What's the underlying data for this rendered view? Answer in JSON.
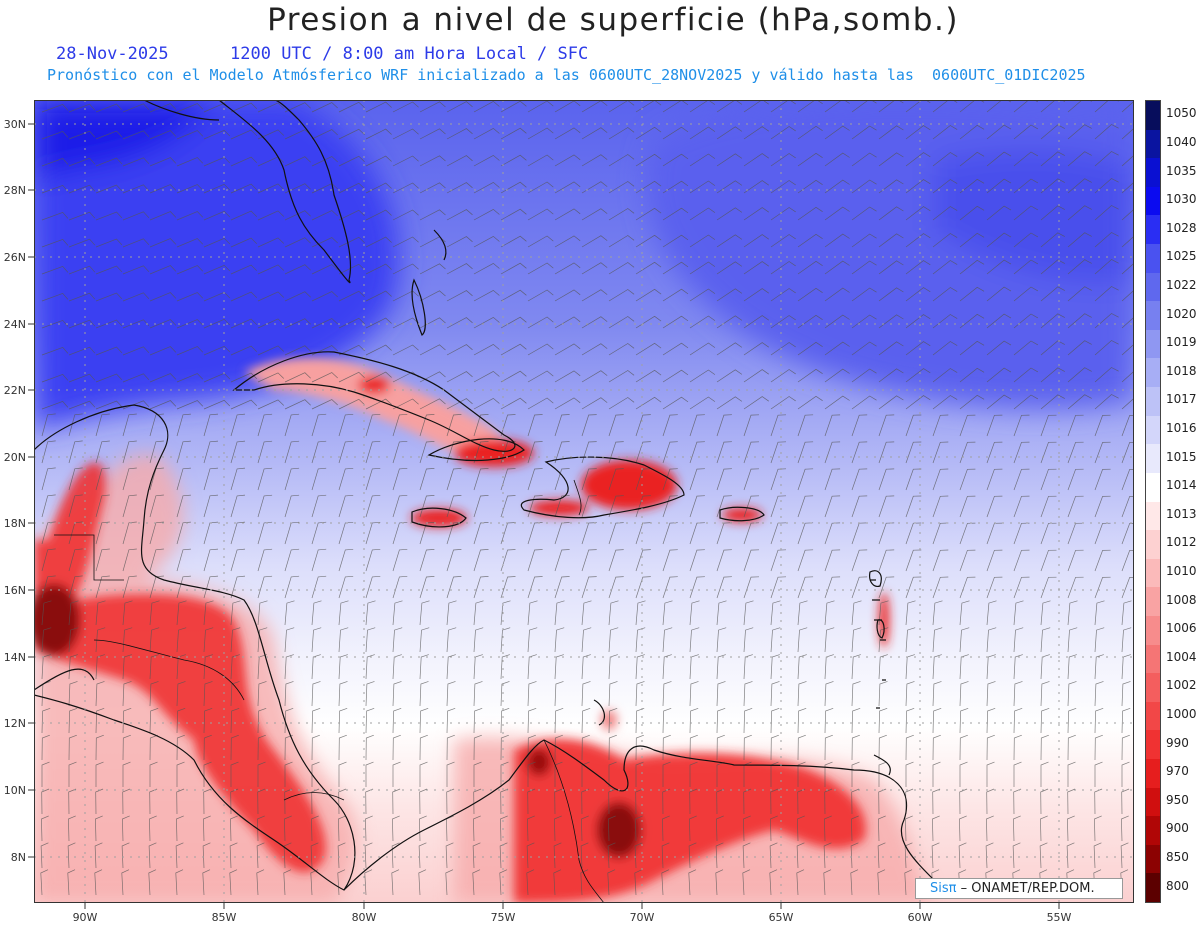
{
  "header": {
    "title": "Presion a nivel de superficie (hPa,somb.)",
    "date": "28-Nov-2025",
    "time": "1200 UTC / 8:00 am Hora Local / SFC",
    "forecast": "Pronóstico con el Modelo Atmósferico WRF inicializado a las 0600UTC_28NOV2025 y válido hasta las  0600UTC_01DIC2025"
  },
  "axes": {
    "lat": [
      "30N",
      "28N",
      "26N",
      "24N",
      "22N",
      "20N",
      "18N",
      "16N",
      "14N",
      "12N",
      "10N",
      "8N"
    ],
    "lon": [
      "90W",
      "85W",
      "80W",
      "75W",
      "70W",
      "65W",
      "60W",
      "55W"
    ]
  },
  "colorbar": {
    "labels": [
      "1050",
      "1040",
      "1035",
      "1030",
      "1028",
      "1025",
      "1022",
      "1020",
      "1019",
      "1018",
      "1017",
      "1016",
      "1015",
      "1014",
      "1013",
      "1012",
      "1010",
      "1008",
      "1006",
      "1004",
      "1002",
      "1000",
      "990",
      "970",
      "950",
      "900",
      "850",
      "800"
    ],
    "colors": [
      "#070d5c",
      "#0a14a0",
      "#0a10d2",
      "#0b0bf0",
      "#2a2ef3",
      "#4a52f0",
      "#5f68ee",
      "#7780f0",
      "#8f97f2",
      "#a7aef5",
      "#bdc2f7",
      "#d3d6fa",
      "#e8e9fc",
      "#ffffff",
      "#ffe8e8",
      "#fdd1d1",
      "#fbbaba",
      "#f9a3a3",
      "#f78c8c",
      "#f57575",
      "#f45e5e",
      "#f24747",
      "#f03232",
      "#e61e1e",
      "#d00f0f",
      "#b00606",
      "#8c0202",
      "#5c0000"
    ]
  },
  "credit": {
    "logo": "Sisπ",
    "text": "– ONAMET/REP.DOM."
  }
}
